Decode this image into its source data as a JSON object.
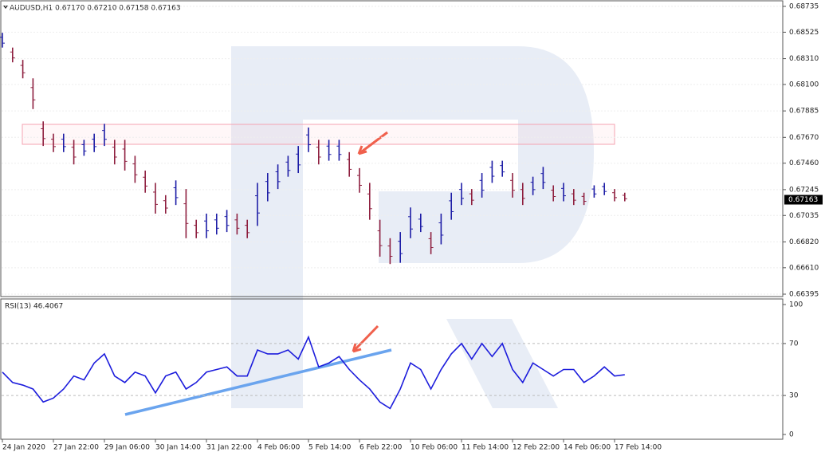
{
  "chart_data": [
    {
      "type": "ohlc",
      "title": "AUDUSD,H1  0.67170 0.67210 0.67158 0.67163",
      "high": [
        0.6852,
        0.684,
        0.683,
        0.6815,
        0.678,
        0.677,
        0.677,
        0.6765,
        0.6765,
        0.677,
        0.6778,
        0.6765,
        0.6765,
        0.6752,
        0.674,
        0.673,
        0.672,
        0.6732,
        0.6725,
        0.67,
        0.6705,
        0.6705,
        0.6708,
        0.6705,
        0.67,
        0.673,
        0.6738,
        0.6745,
        0.6752,
        0.676,
        0.6775,
        0.6765,
        0.6765,
        0.6765,
        0.6755,
        0.6742,
        0.673,
        0.67,
        0.6685,
        0.669,
        0.671,
        0.6705,
        0.669,
        0.6705,
        0.6722,
        0.673,
        0.6725,
        0.6738,
        0.6748,
        0.6748,
        0.6738,
        0.673,
        0.6735,
        0.6743,
        0.6728,
        0.673,
        0.6725,
        0.6722,
        0.6728,
        0.673,
        0.6725,
        0.6722
      ],
      "low": [
        0.684,
        0.6828,
        0.6815,
        0.679,
        0.676,
        0.6755,
        0.6755,
        0.6745,
        0.6752,
        0.6755,
        0.676,
        0.6745,
        0.674,
        0.673,
        0.6722,
        0.6705,
        0.6705,
        0.6712,
        0.6685,
        0.6685,
        0.6685,
        0.6688,
        0.669,
        0.6688,
        0.6685,
        0.6695,
        0.6715,
        0.6725,
        0.6735,
        0.6738,
        0.6755,
        0.6745,
        0.6748,
        0.6748,
        0.6735,
        0.6722,
        0.67,
        0.667,
        0.6664,
        0.6665,
        0.6685,
        0.669,
        0.6672,
        0.668,
        0.67,
        0.6712,
        0.6712,
        0.6718,
        0.673,
        0.6735,
        0.6718,
        0.6712,
        0.672,
        0.6725,
        0.6715,
        0.6715,
        0.6712,
        0.6712,
        0.6718,
        0.672,
        0.6715,
        0.6715
      ],
      "up_color": "#1d1da6",
      "down_color": "#8e1f3f",
      "last_price": {
        "value": 0.67163,
        "label": "0.67163"
      },
      "ylim": [
        0.66395,
        0.68735
      ],
      "yticks": [
        0.68735,
        0.68525,
        {
          "value": 0.6831,
          "label": "0.68310"
        },
        {
          "value": 0.681,
          "label": "0.68100"
        },
        0.67885,
        {
          "value": 0.6767,
          "label": "0.67670"
        },
        {
          "value": 0.6746,
          "label": "0.67460"
        },
        0.67245,
        0.67035,
        {
          "value": 0.6682,
          "label": "0.66820"
        },
        {
          "value": 0.6661,
          "label": "0.66610"
        },
        0.66395
      ],
      "grid": true
    },
    {
      "type": "line",
      "title": "RSI(13) 46.4067",
      "categories": [
        "24 Jan 2020",
        null,
        null,
        null,
        null,
        "27 Jan 22:00",
        null,
        null,
        null,
        null,
        "29 Jan 06:00",
        null,
        null,
        null,
        null,
        "30 Jan 14:00",
        null,
        null,
        null,
        null,
        "31 Jan 22:00",
        null,
        null,
        null,
        null,
        "4 Feb 06:00",
        null,
        null,
        null,
        null,
        "5 Feb 14:00",
        null,
        null,
        null,
        null,
        "6 Feb 22:00",
        null,
        null,
        null,
        null,
        "10 Feb 06:00",
        null,
        null,
        null,
        null,
        "11 Feb 14:00",
        null,
        null,
        null,
        null,
        "12 Feb 22:00",
        null,
        null,
        null,
        null,
        "14 Feb 06:00",
        null,
        null,
        null,
        null,
        "17 Feb 14:00",
        null
      ],
      "values": [
        48,
        40,
        38,
        35,
        25,
        28,
        35,
        45,
        42,
        55,
        62,
        45,
        40,
        48,
        45,
        32,
        45,
        48,
        35,
        40,
        48,
        50,
        52,
        45,
        45,
        65,
        62,
        62,
        65,
        58,
        75,
        52,
        55,
        60,
        50,
        42,
        35,
        25,
        20,
        35,
        55,
        50,
        35,
        50,
        62,
        70,
        58,
        70,
        60,
        70,
        50,
        40,
        55,
        50,
        45,
        50,
        50,
        40,
        45,
        52,
        45,
        46
      ],
      "color": "#1c1cdc",
      "ylim": [
        0,
        100
      ],
      "yticks": [
        0,
        30,
        70,
        100
      ],
      "levels": [
        30,
        70
      ]
    }
  ]
}
